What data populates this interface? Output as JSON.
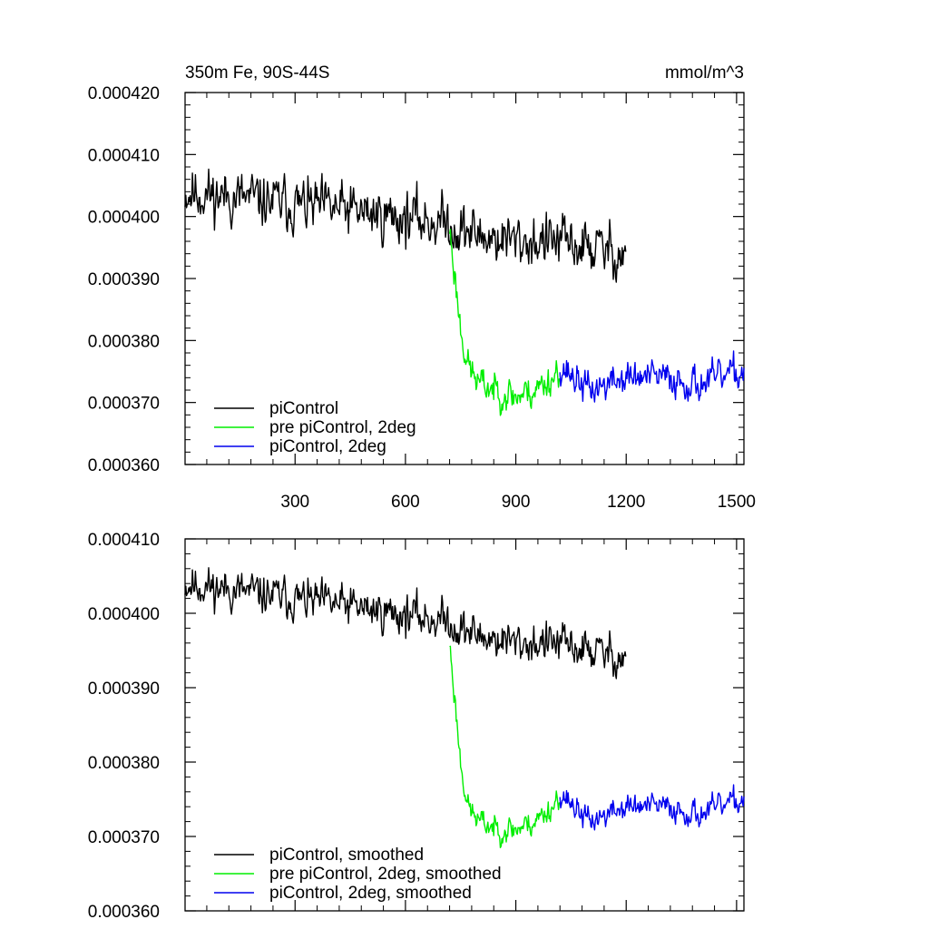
{
  "chart_data": [
    {
      "type": "line",
      "title": "350m Fe, 90S-44S",
      "units": "mmol/m^3",
      "xlim": [
        1,
        1520
      ],
      "ylim": [
        0.00036,
        0.00042
      ],
      "x_ticks": [
        300,
        600,
        900,
        1200,
        1500
      ],
      "x_tick_labels": [
        "300",
        "600",
        "900",
        "1200",
        "1500"
      ],
      "y_ticks": [
        0.00036,
        0.00037,
        0.00038,
        0.00039,
        0.0004,
        0.00041,
        0.00042
      ],
      "y_tick_labels": [
        "0.000360",
        "0.000370",
        "0.000380",
        "0.000390",
        "0.000400",
        "0.000410",
        "0.000420"
      ],
      "legend": "bottom-left",
      "series": [
        {
          "name": "piControl",
          "color": "#000000",
          "x": [
            1,
            720,
            740,
            800,
            900,
            1000,
            1200
          ],
          "y": [
            0.000404,
            0.000399,
            0.000398,
            0.000397,
            0.000396,
            0.000396,
            0.000394
          ],
          "noise": 3.5e-06,
          "seed": 11
        },
        {
          "name": "pre piControl, 2deg",
          "color": "#00ee00",
          "x": [
            720,
            735,
            750,
            770,
            800,
            850,
            900,
            950,
            1000,
            1020
          ],
          "y": [
            0.000398,
            0.00039,
            0.000382,
            0.000376,
            0.000373,
            0.000372,
            0.000371,
            0.000372,
            0.000374,
            0.000376
          ],
          "noise": 2.2e-06,
          "seed": 23
        },
        {
          "name": "piControl, 2deg",
          "color": "#0000ee",
          "x": [
            1020,
            1100,
            1200,
            1300,
            1400,
            1520
          ],
          "y": [
            0.000376,
            0.000372,
            0.000374,
            0.000374,
            0.000373,
            0.000375
          ],
          "noise": 2.2e-06,
          "seed": 37
        }
      ]
    },
    {
      "type": "line",
      "xlim": [
        1,
        1520
      ],
      "ylim": [
        0.00036,
        0.00041
      ],
      "x_ticks": [
        300,
        600,
        900,
        1200,
        1500
      ],
      "y_ticks": [
        0.00036,
        0.00037,
        0.00038,
        0.00039,
        0.0004,
        0.00041
      ],
      "y_tick_labels": [
        "0.000360",
        "0.000370",
        "0.000380",
        "0.000390",
        "0.000400",
        "0.000410"
      ],
      "legend": "bottom-left",
      "series": [
        {
          "name": "piControl, smoothed",
          "color": "#000000",
          "x": [
            1,
            720,
            740,
            800,
            900,
            1000,
            1200
          ],
          "y": [
            0.000404,
            0.000399,
            0.000398,
            0.000397,
            0.000396,
            0.000396,
            0.000394
          ],
          "noise": 2.2e-06,
          "seed": 11
        },
        {
          "name": "pre piControl, 2deg, smoothed",
          "color": "#00ee00",
          "x": [
            720,
            735,
            750,
            770,
            800,
            850,
            900,
            950,
            1000,
            1020
          ],
          "y": [
            0.000396,
            0.000388,
            0.00038,
            0.000374,
            0.000372,
            0.000371,
            0.000371,
            0.000372,
            0.000374,
            0.000376
          ],
          "noise": 1.4e-06,
          "seed": 23
        },
        {
          "name": "piControl, 2deg, smoothed",
          "color": "#0000ee",
          "x": [
            1020,
            1100,
            1200,
            1300,
            1400,
            1520
          ],
          "y": [
            0.000376,
            0.000372,
            0.000374,
            0.000374,
            0.000373,
            0.000375
          ],
          "noise": 1.4e-06,
          "seed": 37
        }
      ]
    }
  ]
}
